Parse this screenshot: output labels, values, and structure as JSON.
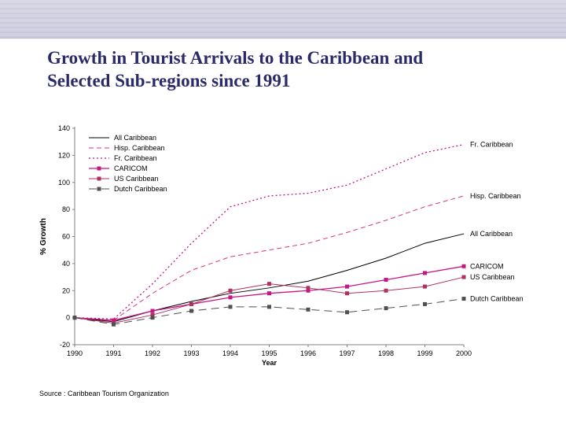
{
  "title_lines": [
    "Growth in Tourist Arrivals to the Caribbean and",
    "Selected Sub-regions since 1991"
  ],
  "source_text": "Source : Caribbean Tourism Organization",
  "chart": {
    "type": "line",
    "ylabel": "% Growth",
    "xlabel": "Year",
    "years": [
      1990,
      1991,
      1992,
      1993,
      1994,
      1995,
      1996,
      1997,
      1998,
      1999,
      2000
    ],
    "ylim": [
      -20,
      140
    ],
    "ytick_step": 20,
    "background": "#ffffff",
    "axis_color": "#808080",
    "series": [
      {
        "key": "all",
        "name": "All Caribbean",
        "color": "#000000",
        "style": "solid",
        "marker": "none",
        "width": 1,
        "label_side": "All Caribbean",
        "values": [
          0,
          -3,
          5,
          12,
          18,
          22,
          27,
          35,
          44,
          55,
          62
        ]
      },
      {
        "key": "hisp",
        "name": "Hisp. Caribbean",
        "color": "#d63384",
        "style": "dash",
        "marker": "none",
        "width": 1,
        "label_side": "Hisp. Caribbean",
        "values": [
          0,
          -2,
          18,
          35,
          45,
          50,
          55,
          63,
          72,
          82,
          90
        ]
      },
      {
        "key": "fr",
        "name": "Fr. Caribbean",
        "color": "#c71585",
        "style": "dot",
        "marker": "none",
        "width": 1.3,
        "label_side": "Fr. Caribbean",
        "values": [
          0,
          -1,
          25,
          55,
          82,
          90,
          92,
          98,
          110,
          122,
          128
        ]
      },
      {
        "key": "car",
        "name": "CARICOM",
        "color": "#c71585",
        "style": "solid",
        "marker": "square",
        "width": 1.3,
        "label_side": "CARICOM",
        "values": [
          0,
          -2,
          5,
          10,
          15,
          18,
          20,
          23,
          28,
          33,
          38
        ]
      },
      {
        "key": "us",
        "name": "US Caribbean",
        "color": "#b03060",
        "style": "solid",
        "marker": "square",
        "width": 1,
        "label_side": "US Caribbean",
        "values": [
          0,
          -4,
          2,
          10,
          20,
          25,
          22,
          18,
          20,
          23,
          30
        ]
      },
      {
        "key": "dutch",
        "name": "Dutch Caribbean",
        "color": "#505050",
        "style": "longdash",
        "marker": "square",
        "width": 1,
        "label_side": "Dutch Caribbean",
        "values": [
          0,
          -5,
          0,
          5,
          8,
          8,
          6,
          4,
          7,
          10,
          14
        ]
      }
    ]
  }
}
